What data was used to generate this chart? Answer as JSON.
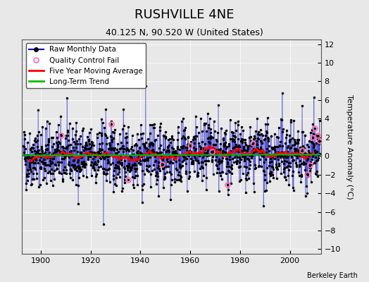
{
  "title": "RUSHVILLE 4NE",
  "subtitle": "40.125 N, 90.520 W (United States)",
  "ylabel": "Temperature Anomaly (°C)",
  "attribution": "Berkeley Earth",
  "year_start": 1893,
  "year_end": 2012,
  "ylim": [
    -10.5,
    12.5
  ],
  "yticks": [
    -10,
    -8,
    -6,
    -4,
    -2,
    0,
    2,
    4,
    6,
    8,
    10,
    12
  ],
  "xticks": [
    1900,
    1920,
    1940,
    1960,
    1980,
    2000
  ],
  "raw_color": "#0000cc",
  "raw_marker_color": "#000000",
  "qc_fail_color": "#ff69b4",
  "moving_avg_color": "#ff0000",
  "trend_color": "#00bb00",
  "figure_bg_color": "#e8e8e8",
  "plot_bg_color": "#e8e8e8",
  "title_fontsize": 13,
  "subtitle_fontsize": 9,
  "ylabel_fontsize": 8,
  "tick_fontsize": 8,
  "legend_fontsize": 7.5,
  "seed": 42,
  "n_months": 1416,
  "moving_avg_window": 60,
  "qc_fail_years": [
    1935,
    1960,
    1975,
    1985,
    2005,
    2007,
    2008,
    2009,
    2010,
    2011,
    2012
  ]
}
